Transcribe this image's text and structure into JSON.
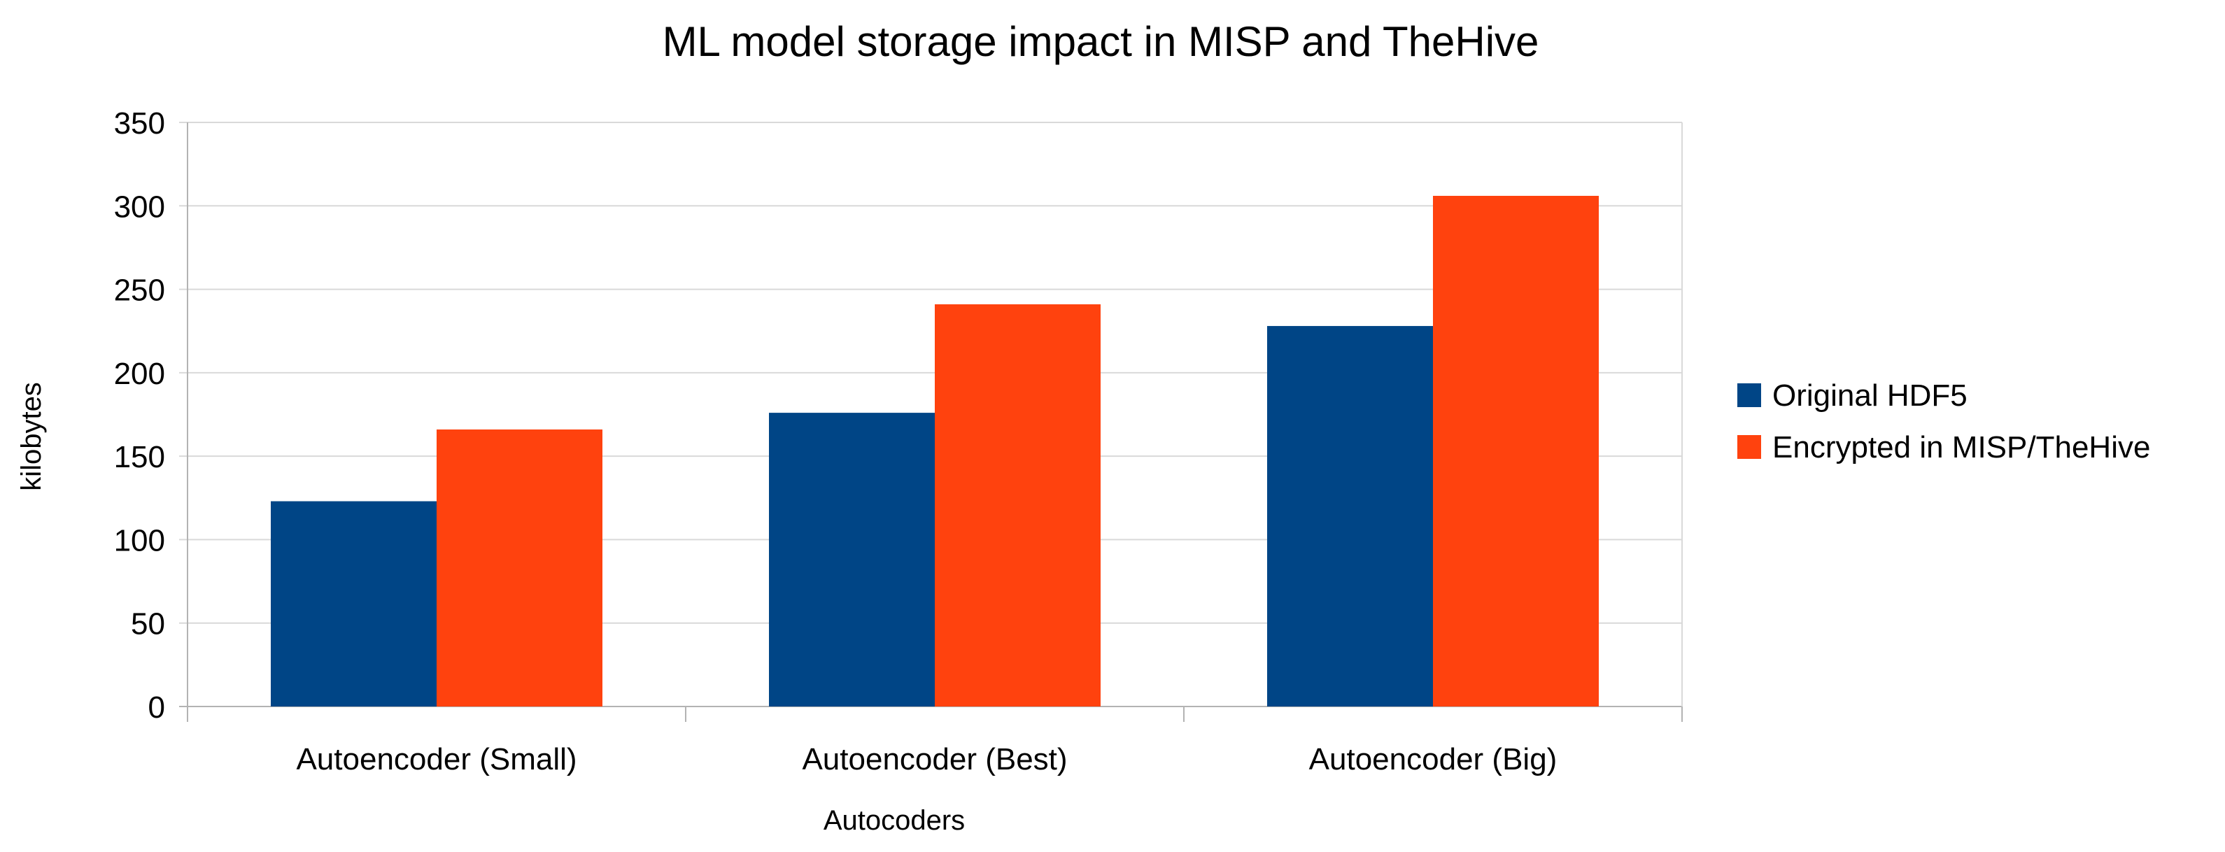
{
  "chart_data": {
    "type": "bar",
    "title": "ML model storage impact in MISP and TheHive",
    "xlabel": "Autocoders",
    "ylabel": "kilobytes",
    "categories": [
      "Autoencoder (Small)",
      "Autoencoder (Best)",
      "Autoencoder (Big)"
    ],
    "series": [
      {
        "name": "Original HDF5",
        "color": "#004586",
        "values": [
          123,
          176,
          228
        ]
      },
      {
        "name": "Encrypted in MISP/TheHive",
        "color": "#ff420e",
        "values": [
          166,
          241,
          306
        ]
      }
    ],
    "ylim": [
      0,
      350
    ],
    "yticks": [
      0,
      50,
      100,
      150,
      200,
      250,
      300,
      350
    ],
    "grid": true,
    "legend_position": "right"
  }
}
